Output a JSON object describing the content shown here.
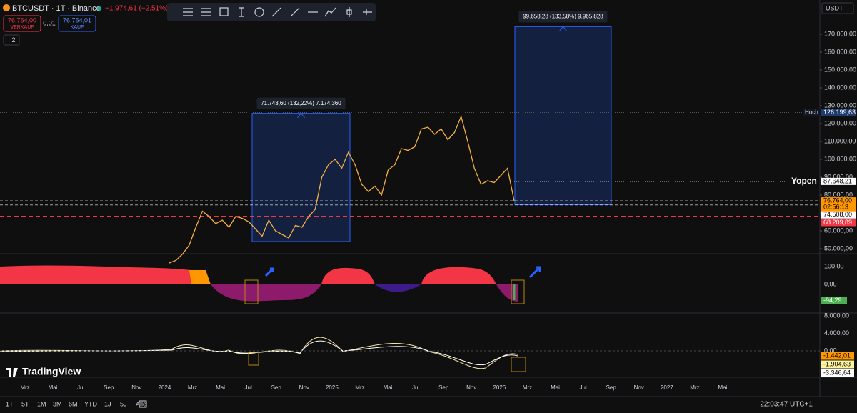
{
  "header": {
    "symbol": "BTCUSDT · 1T · Binance",
    "change": "−1.974,61 (−2,51%)",
    "sell_price": "76.764,00",
    "sell_label": "VERKAUF",
    "spread": "0,01",
    "buy_price": "76.764,01",
    "buy_label": "KAUF",
    "indicator_count": "2",
    "currency": "USDT"
  },
  "chart_data": {
    "type": "line",
    "color": "#f5b041",
    "values": [
      42000,
      43500,
      47000,
      52000,
      62000,
      71000,
      68000,
      64000,
      66000,
      62000,
      68000,
      67000,
      65000,
      61000,
      57000,
      66000,
      60000,
      58000,
      56000,
      63000,
      62000,
      68000,
      72000,
      90000,
      97000,
      100000,
      95000,
      104000,
      97000,
      86000,
      82000,
      85000,
      80000,
      94000,
      97000,
      106000,
      105000,
      107000,
      117000,
      118000,
      114000,
      117000,
      111000,
      115000,
      124000,
      110000,
      95000,
      86000,
      88000,
      87000,
      91000,
      95000,
      76764
    ],
    "ylim": [
      47200,
      189200
    ],
    "yticks": [
      {
        "value": 50000,
        "label": "50.000,00"
      },
      {
        "value": 60000,
        "label": "60.000,00"
      },
      {
        "value": 70000,
        "label": "70.000,00"
      },
      {
        "value": 80000,
        "label": "80.000,00"
      },
      {
        "value": 90000,
        "label": "90.000,00"
      },
      {
        "value": 100000,
        "label": "100.000,00"
      },
      {
        "value": 110000,
        "label": "110.000,00"
      },
      {
        "value": 120000,
        "label": "120.000,00"
      },
      {
        "value": 130000,
        "label": "130.000,00"
      },
      {
        "value": 140000,
        "label": "140.000,00"
      },
      {
        "value": 150000,
        "label": "150.000,00"
      },
      {
        "value": 160000,
        "label": "160.000,00"
      },
      {
        "value": 170000,
        "label": "170.000,00"
      }
    ],
    "markers": [
      {
        "value": 126199.63,
        "label": "126.199,63",
        "name": "Hoch"
      },
      {
        "value": 87648.21,
        "label": "87.648,21"
      },
      {
        "value": 76764,
        "label": "76.764,00",
        "countdown": "02:56:13"
      },
      {
        "value": 74508,
        "label": "74.508,00"
      },
      {
        "value": 68209.89,
        "label": "68.209,89"
      }
    ],
    "annotation": "Yopen",
    "measurements": [
      {
        "low": 54000,
        "high": 125743.6,
        "label": "71.743,60 (132,22%) 7.174.360"
      },
      {
        "low": 74600,
        "high": 174258.28,
        "label": "99.658,28 (133,58%) 9.965.828"
      }
    ]
  },
  "oscillator_1": {
    "ticks": [
      {
        "value": 100,
        "label": "100,00"
      },
      {
        "value": 0,
        "label": "0,00"
      }
    ],
    "current": {
      "value": -94.29,
      "label": "-94,29"
    }
  },
  "oscillator_2": {
    "ticks": [
      {
        "value": 8000,
        "label": "8.000,00"
      },
      {
        "value": 4000,
        "label": "4.000,00"
      },
      {
        "value": 0,
        "label": "0,00"
      }
    ],
    "current": [
      {
        "value": -1442.01,
        "label": "-1.442,01"
      },
      {
        "value": -1904.63,
        "label": "-1.904,63"
      },
      {
        "value": -3346.64,
        "label": "-3.346,64"
      }
    ]
  },
  "time_axis": [
    "Mrz",
    "Mai",
    "Jul",
    "Sep",
    "Nov",
    "2024",
    "Mrz",
    "Mai",
    "Jul",
    "Sep",
    "Nov",
    "2025",
    "Mrz",
    "Mai",
    "Jul",
    "Sep",
    "Nov",
    "2026",
    "Mrz",
    "Mai",
    "Jul",
    "Sep",
    "Nov",
    "2027",
    "Mrz",
    "Mai"
  ],
  "logo": "TradingView",
  "footer": {
    "ranges": [
      "1T",
      "5T",
      "1M",
      "3M",
      "6M",
      "YTD",
      "1J",
      "5J",
      "Alle"
    ],
    "clock": "22:03:47 UTC+1"
  }
}
